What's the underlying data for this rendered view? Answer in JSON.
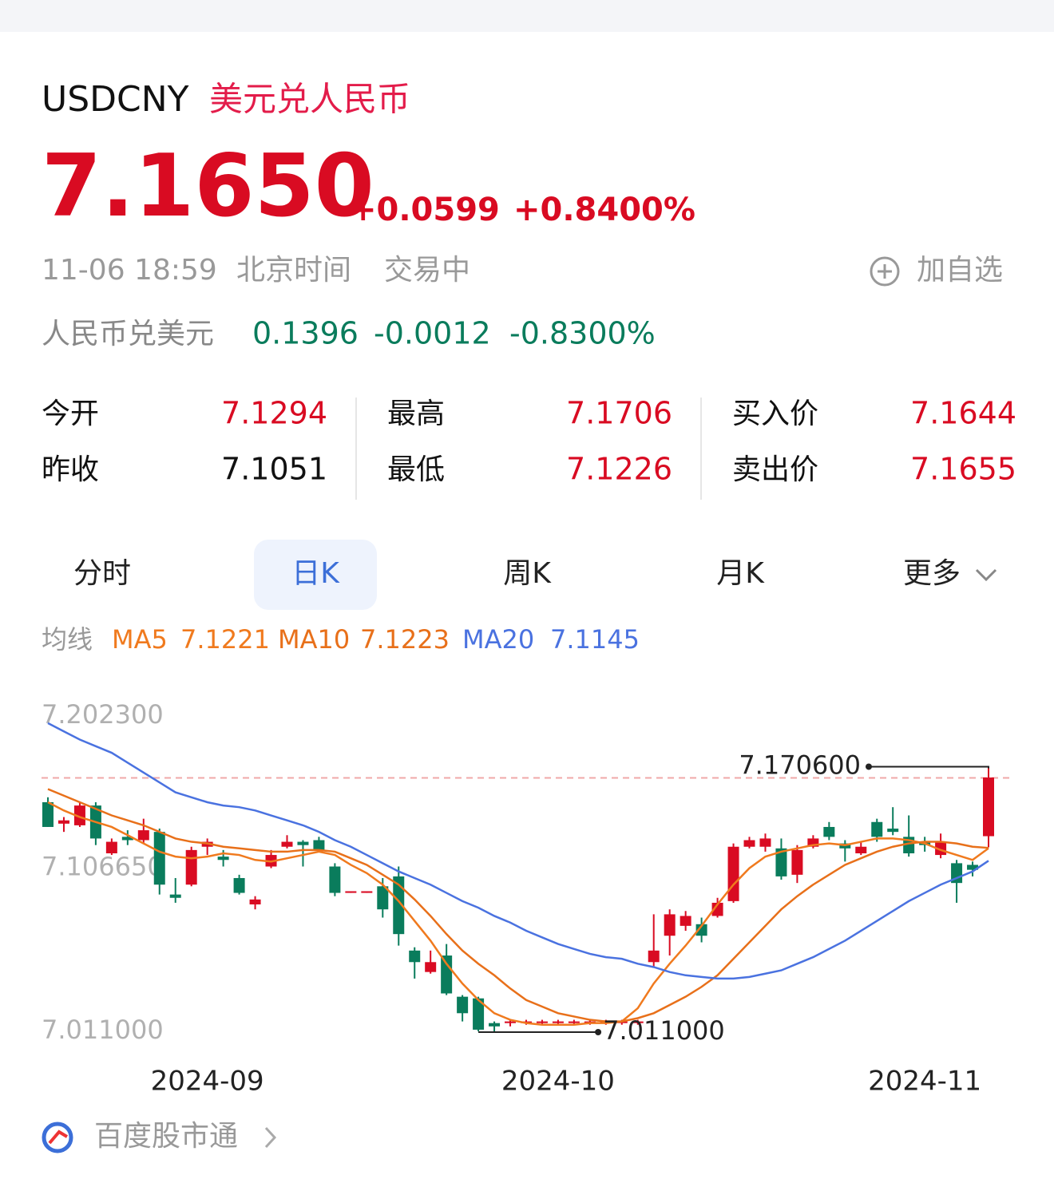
{
  "header": {
    "symbol": "USDCNY",
    "name": "美元兑人民币",
    "price": "7.1650",
    "change": "+0.0599",
    "change_pct": "+0.8400%",
    "time": "11-06 18:59",
    "timezone": "北京时间",
    "status": "交易中",
    "watch": "加自选"
  },
  "reverse": {
    "label": "人民币兑美元",
    "price": "0.1396",
    "change": "-0.0012",
    "change_pct": "-0.8300%"
  },
  "stats": [
    {
      "label": "今开",
      "value": "7.1294"
    },
    {
      "label": "昨收",
      "value": "7.1051"
    },
    {
      "label": "最高",
      "value": "7.1706"
    },
    {
      "label": "最低",
      "value": "7.1226"
    },
    {
      "label": "买入价",
      "value": "7.1644"
    },
    {
      "label": "卖出价",
      "value": "7.1655"
    }
  ],
  "tabs": [
    "分时",
    "日K",
    "周K",
    "月K",
    "更多"
  ],
  "ma_label": "均线",
  "footer": "百度股市通",
  "chart_data": {
    "type": "candlestick",
    "categories": [
      null,
      null,
      null,
      null,
      null,
      null,
      null,
      null,
      null,
      null,
      "2024-09",
      null,
      null,
      null,
      null,
      null,
      null,
      null,
      null,
      null,
      null,
      null,
      null,
      null,
      null,
      null,
      null,
      null,
      null,
      null,
      null,
      null,
      "2024-10",
      null,
      null,
      null,
      null,
      null,
      null,
      null,
      null,
      null,
      null,
      null,
      null,
      null,
      null,
      null,
      null,
      null,
      null,
      null,
      null,
      null,
      null,
      "2024-11",
      null,
      null,
      null,
      null
    ],
    "open": [
      7.15,
      7.137,
      7.136,
      7.148,
      7.119,
      7.129,
      7.127,
      7.132,
      7.094,
      7.1,
      7.123,
      7.117,
      7.104,
      7.088,
      7.111,
      7.123,
      7.126,
      7.127,
      7.111,
      7.095,
      7.095,
      7.099,
      7.105,
      7.06,
      7.047,
      7.057,
      7.032,
      7.031,
      7.016,
      7.016,
      7.016,
      7.016,
      7.016,
      7.016,
      7.016,
      7.016,
      7.016,
      7.016,
      7.053,
      7.069,
      7.075,
      7.076,
      7.081,
      7.09,
      7.123,
      7.123,
      7.122,
      7.106,
      7.123,
      7.135,
      7.125,
      7.119,
      7.138,
      7.134,
      7.129,
      7.126,
      7.118,
      7.113,
      7.112,
      7.1294
    ],
    "high": [
      7.153,
      7.141,
      7.15,
      7.15,
      7.128,
      7.133,
      7.14,
      7.134,
      7.104,
      7.123,
      7.128,
      7.121,
      7.106,
      7.093,
      7.121,
      7.13,
      7.127,
      7.129,
      7.113,
      7.096,
      7.096,
      7.104,
      7.111,
      7.062,
      7.06,
      7.064,
      7.033,
      7.032,
      7.017,
      7.018,
      7.018,
      7.018,
      7.018,
      7.018,
      7.018,
      7.018,
      7.018,
      7.018,
      7.082,
      7.085,
      7.084,
      7.08,
      7.092,
      7.125,
      7.129,
      7.131,
      7.128,
      7.124,
      7.13,
      7.138,
      7.127,
      7.126,
      7.14,
      7.147,
      7.142,
      7.129,
      7.131,
      7.115,
      7.114,
      7.1706
    ],
    "low": [
      7.135,
      7.132,
      7.135,
      7.124,
      7.118,
      7.124,
      7.125,
      7.094,
      7.089,
      7.099,
      7.118,
      7.111,
      7.094,
      7.085,
      7.11,
      7.122,
      7.111,
      7.12,
      7.093,
      7.095,
      7.095,
      7.08,
      7.063,
      7.043,
      7.046,
      7.033,
      7.017,
      7.011,
      7.011,
      7.014,
      7.015,
      7.015,
      7.015,
      7.015,
      7.015,
      7.015,
      7.015,
      7.015,
      7.05,
      7.057,
      7.072,
      7.065,
      7.08,
      7.089,
      7.122,
      7.12,
      7.103,
      7.101,
      7.122,
      7.127,
      7.114,
      7.118,
      7.126,
      7.13,
      7.117,
      7.12,
      7.116,
      7.089,
      7.105,
      7.1226
    ],
    "close": [
      7.135,
      7.139,
      7.148,
      7.128,
      7.126,
      7.127,
      7.133,
      7.1,
      7.092,
      7.121,
      7.126,
      7.115,
      7.095,
      7.091,
      7.118,
      7.126,
      7.124,
      7.121,
      7.095,
      7.096,
      7.096,
      7.085,
      7.07,
      7.053,
      7.053,
      7.034,
      7.022,
      7.012,
      7.014,
      7.017,
      7.017,
      7.017,
      7.017,
      7.017,
      7.017,
      7.017,
      7.017,
      7.017,
      7.06,
      7.082,
      7.081,
      7.069,
      7.089,
      7.123,
      7.127,
      7.128,
      7.105,
      7.121,
      7.128,
      7.129,
      7.122,
      7.123,
      7.129,
      7.132,
      7.119,
      7.124,
      7.126,
      7.101,
      7.109,
      7.165
    ],
    "up_color": "#d90b22",
    "down_color": "#0a7c5c",
    "series": [
      {
        "name": "MA5",
        "last": 7.1221,
        "color": "#f07a1e",
        "values": [
          7.15,
          7.145,
          7.141,
          7.138,
          7.135,
          7.13,
          7.125,
          7.12,
          7.117,
          7.116,
          7.117,
          7.119,
          7.118,
          7.115,
          7.114,
          7.116,
          7.118,
          7.12,
          7.118,
          7.112,
          7.107,
          7.1,
          7.09,
          7.078,
          7.066,
          7.052,
          7.04,
          7.03,
          7.022,
          7.018,
          7.016,
          7.015,
          7.015,
          7.015,
          7.016,
          7.016,
          7.017,
          7.025,
          7.04,
          7.052,
          7.063,
          7.075,
          7.088,
          7.1,
          7.11,
          7.117,
          7.12,
          7.122,
          7.124,
          7.125,
          7.124,
          7.126,
          7.128,
          7.128,
          7.127,
          7.125,
          7.121,
          7.118,
          7.115,
          7.1221
        ]
      },
      {
        "name": "MA10",
        "last": 7.1223,
        "color": "#e8701a",
        "values": [
          7.158,
          7.154,
          7.15,
          7.146,
          7.142,
          7.139,
          7.136,
          7.132,
          7.128,
          7.126,
          7.125,
          7.123,
          7.122,
          7.121,
          7.12,
          7.12,
          7.121,
          7.121,
          7.12,
          7.116,
          7.112,
          7.106,
          7.1,
          7.091,
          7.081,
          7.07,
          7.06,
          7.052,
          7.045,
          7.037,
          7.03,
          7.026,
          7.022,
          7.02,
          7.018,
          7.017,
          7.017,
          7.019,
          7.022,
          7.027,
          7.032,
          7.038,
          7.045,
          7.055,
          7.065,
          7.075,
          7.085,
          7.093,
          7.1,
          7.106,
          7.112,
          7.116,
          7.12,
          7.123,
          7.125,
          7.126,
          7.126,
          7.125,
          7.123,
          7.1223
        ]
      },
      {
        "name": "MA20",
        "last": 7.1145,
        "color": "#4a72e0",
        "values": [
          7.198,
          7.193,
          7.188,
          7.184,
          7.18,
          7.174,
          7.168,
          7.162,
          7.156,
          7.153,
          7.15,
          7.148,
          7.147,
          7.145,
          7.142,
          7.139,
          7.136,
          7.132,
          7.127,
          7.123,
          7.118,
          7.113,
          7.108,
          7.104,
          7.1,
          7.095,
          7.09,
          7.086,
          7.081,
          7.077,
          7.072,
          7.068,
          7.064,
          7.061,
          7.058,
          7.056,
          7.055,
          7.052,
          7.05,
          7.047,
          7.045,
          7.044,
          7.043,
          7.043,
          7.044,
          7.046,
          7.048,
          7.052,
          7.056,
          7.061,
          7.066,
          7.072,
          7.078,
          7.084,
          7.09,
          7.095,
          7.1,
          7.104,
          7.108,
          7.1145
        ]
      }
    ],
    "ylim": [
      7.011,
      7.2023
    ],
    "yticks": [
      {
        "value": 7.2023,
        "label": "7.202300"
      },
      {
        "value": 7.10665,
        "label": "7.106650"
      },
      {
        "value": 7.011,
        "label": "7.011000"
      }
    ],
    "annotations": [
      {
        "value": 7.1706,
        "label": "7.170600"
      },
      {
        "value": 7.011,
        "label": "7.011000"
      }
    ]
  }
}
